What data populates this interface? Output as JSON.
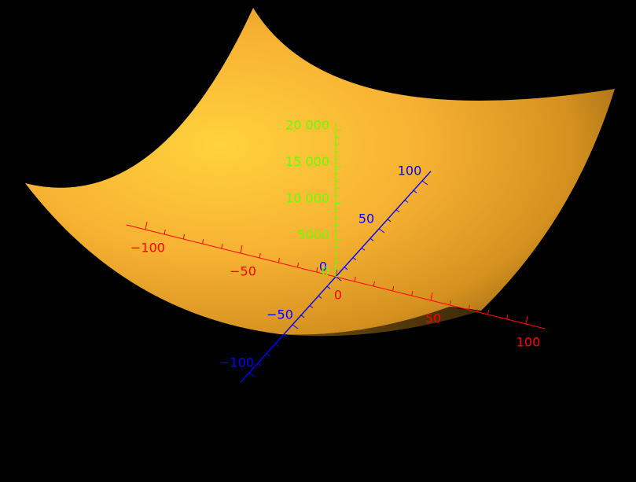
{
  "chart_data": {
    "type": "surface",
    "function": "z = x^2 + y^2",
    "surface_color": "#F5B335",
    "background": "#000000",
    "x_axis": {
      "color": "#FF0000",
      "range": [
        -110,
        110
      ],
      "major_ticks": [
        -100,
        -50,
        0,
        50,
        100
      ],
      "tick_labels": [
        "−100",
        "−50",
        "0",
        "50",
        "100"
      ]
    },
    "y_axis": {
      "color": "#0000FF",
      "range": [
        -110,
        110
      ],
      "major_ticks": [
        -100,
        -50,
        0,
        50,
        100
      ],
      "tick_labels": [
        "−100",
        "−50",
        "0",
        "50",
        "100"
      ]
    },
    "z_axis": {
      "color": "#66FF00",
      "range": [
        0,
        21000
      ],
      "major_ticks": [
        0,
        5000,
        10000,
        15000,
        20000
      ],
      "tick_labels": [
        "0",
        "5000",
        "10 000",
        "15 000",
        "20 000"
      ]
    }
  }
}
